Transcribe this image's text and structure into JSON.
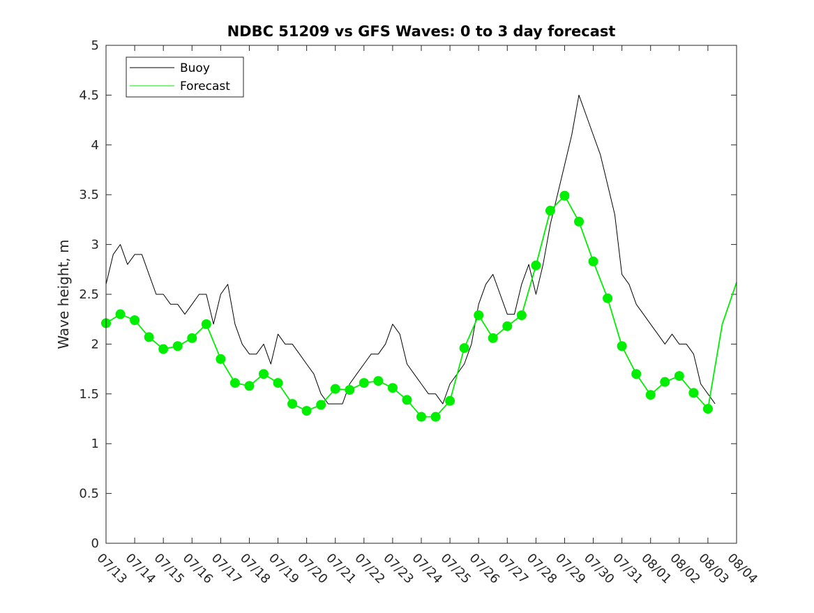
{
  "chart_data": {
    "type": "line",
    "title": "NDBC 51209 vs GFS Waves: 0 to 3 day forecast",
    "xlabel": "",
    "ylabel": "Wave height, m",
    "ylim": [
      0,
      5
    ],
    "yticks": [
      0,
      0.5,
      1,
      1.5,
      2,
      2.5,
      3,
      3.5,
      4,
      4.5,
      5
    ],
    "ytick_labels": [
      "0",
      "0.5",
      "1",
      "1.5",
      "2",
      "2.5",
      "3",
      "3.5",
      "4",
      "4.5",
      "5"
    ],
    "xlim": [
      0,
      22
    ],
    "xtick_labels": [
      "07/13",
      "07/14",
      "07/15",
      "07/16",
      "07/17",
      "07/18",
      "07/19",
      "07/20",
      "07/21",
      "07/22",
      "07/23",
      "07/24",
      "07/25",
      "07/26",
      "07/27",
      "07/28",
      "07/29",
      "07/30",
      "07/31",
      "08/01",
      "08/02",
      "08/03",
      "08/04"
    ],
    "x_unit": "days since 07/13",
    "grid": false,
    "legend_position": "top-left",
    "colors": {
      "buoy": "#000000",
      "forecast": "#00ee00"
    },
    "series": [
      {
        "name": "Buoy",
        "style": "line",
        "x": [
          0,
          0.25,
          0.5,
          0.75,
          1,
          1.25,
          1.5,
          1.75,
          2,
          2.25,
          2.5,
          2.75,
          3,
          3.25,
          3.5,
          3.75,
          4,
          4.25,
          4.5,
          4.75,
          5,
          5.25,
          5.5,
          5.75,
          6,
          6.25,
          6.5,
          6.75,
          7,
          7.25,
          7.5,
          7.75,
          8,
          8.25,
          8.5,
          8.75,
          9,
          9.25,
          9.5,
          9.75,
          10,
          10.25,
          10.5,
          10.75,
          11,
          11.25,
          11.5,
          11.75,
          12,
          12.25,
          12.5,
          12.75,
          13,
          13.25,
          13.5,
          13.75,
          14,
          14.25,
          14.5,
          14.75,
          15,
          15.25,
          15.5,
          15.75,
          16,
          16.25,
          16.5,
          16.75,
          17,
          17.25,
          17.5,
          17.75,
          18,
          18.25,
          18.5,
          18.75,
          19,
          19.25,
          19.5,
          19.75,
          20,
          20.25,
          20.5,
          20.75,
          21,
          21.25
        ],
        "y": [
          2.6,
          2.9,
          3.0,
          2.8,
          2.9,
          2.9,
          2.7,
          2.5,
          2.5,
          2.4,
          2.4,
          2.3,
          2.4,
          2.5,
          2.5,
          2.2,
          2.5,
          2.6,
          2.2,
          2.0,
          1.9,
          1.9,
          2.0,
          1.8,
          2.1,
          2.0,
          2.0,
          1.9,
          1.8,
          1.7,
          1.5,
          1.4,
          1.4,
          1.4,
          1.6,
          1.7,
          1.8,
          1.9,
          1.9,
          2.0,
          2.2,
          2.1,
          1.8,
          1.7,
          1.6,
          1.5,
          1.5,
          1.4,
          1.6,
          1.7,
          1.8,
          2.0,
          2.4,
          2.6,
          2.7,
          2.5,
          2.3,
          2.3,
          2.6,
          2.8,
          2.5,
          2.8,
          3.2,
          3.5,
          3.8,
          4.1,
          4.5,
          4.3,
          4.1,
          3.9,
          3.6,
          3.3,
          2.7,
          2.6,
          2.4,
          2.3,
          2.2,
          2.1,
          2.0,
          2.1,
          2.0,
          2.0,
          1.9,
          1.6,
          1.5,
          1.4
        ]
      },
      {
        "name": "Forecast",
        "style": "line",
        "x": [
          0,
          0.5,
          1,
          1.5,
          2,
          2.5,
          3,
          3.5,
          4,
          4.5,
          5,
          5.5,
          6,
          6.5,
          7,
          7.5,
          8,
          8.5,
          9,
          9.5,
          10,
          10.5,
          11,
          11.5,
          12,
          12.5,
          13,
          13.5,
          14,
          14.5,
          15,
          15.5,
          16,
          16.5,
          17,
          17.5,
          18,
          18.5,
          19,
          19.5,
          20,
          20.5,
          21,
          21.5,
          22
        ],
        "y": [
          2.21,
          2.3,
          2.24,
          2.07,
          1.95,
          1.98,
          2.06,
          2.2,
          1.85,
          1.61,
          1.58,
          1.7,
          1.61,
          1.4,
          1.33,
          1.39,
          1.55,
          1.54,
          1.61,
          1.63,
          1.56,
          1.44,
          1.27,
          1.27,
          1.43,
          1.96,
          2.29,
          2.06,
          2.18,
          2.29,
          2.79,
          3.34,
          3.49,
          3.23,
          2.83,
          2.46,
          1.98,
          1.7,
          1.49,
          1.62,
          1.68,
          1.51,
          1.35,
          2.2,
          2.62
        ]
      }
    ],
    "forecast_markers": {
      "x": [
        0,
        0.5,
        1,
        1.5,
        2,
        2.5,
        3,
        3.5,
        4,
        4.5,
        5,
        5.5,
        6,
        6.5,
        7,
        7.5,
        8,
        8.5,
        9,
        9.5,
        10,
        10.5,
        11,
        11.5,
        12,
        12.5,
        13,
        13.5,
        14,
        14.5,
        15,
        15.5,
        16,
        16.5,
        17,
        17.5,
        18,
        18.5,
        19,
        19.5,
        20,
        20.5,
        21
      ],
      "y": [
        2.21,
        2.3,
        2.24,
        2.07,
        1.95,
        1.98,
        2.06,
        2.2,
        1.85,
        1.61,
        1.58,
        1.7,
        1.61,
        1.4,
        1.33,
        1.39,
        1.55,
        1.54,
        1.61,
        1.63,
        1.56,
        1.44,
        1.27,
        1.27,
        1.43,
        1.96,
        2.29,
        2.06,
        2.18,
        2.29,
        2.79,
        3.34,
        3.49,
        3.23,
        2.83,
        2.46,
        1.98,
        1.7,
        1.49,
        1.62,
        1.68,
        1.51,
        1.35
      ]
    }
  }
}
